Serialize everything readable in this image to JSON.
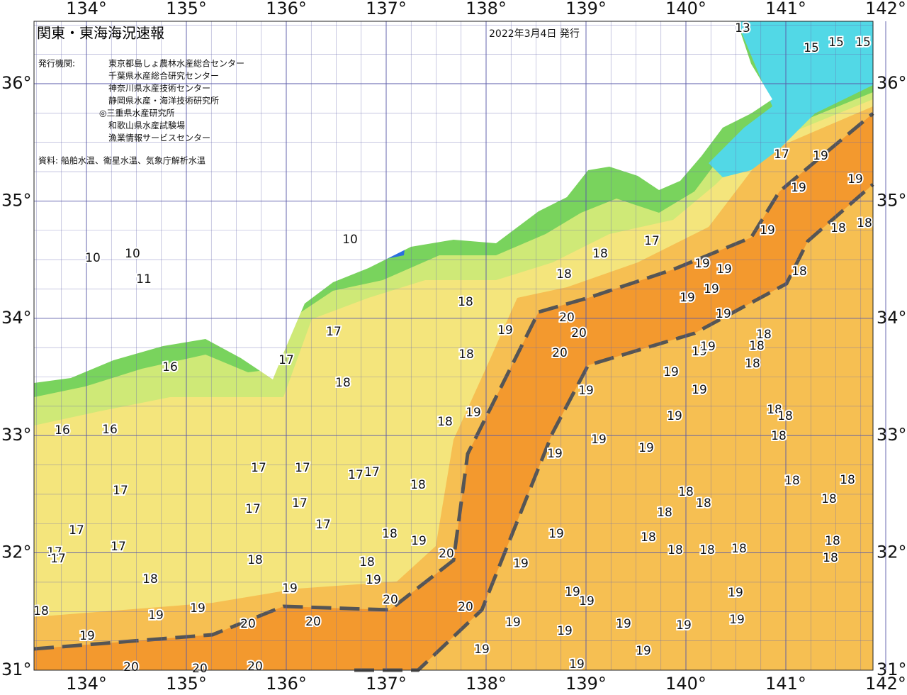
{
  "map_data": {
    "title": "関東・東海海況速報",
    "date": "2022年3月4日 発行",
    "publisher_label": "発行機関:",
    "publishers": [
      "東京都島しょ農林水産総合センター",
      "千葉県水産総合研究センター",
      "神奈川県水産技術センター",
      "静岡県水産・海洋技術研究所",
      "◎三重県水産研究所",
      "和歌山県水産試験場",
      "漁業情報サービスセンター"
    ],
    "source": "資料: 船舶水温、衛星水温、気象庁解析水温",
    "lon_ticks": [
      {
        "value": 134,
        "label": "134°"
      },
      {
        "value": 135,
        "label": "135°"
      },
      {
        "value": 136,
        "label": "136°"
      },
      {
        "value": 137,
        "label": "137°"
      },
      {
        "value": 138,
        "label": "138°"
      },
      {
        "value": 139,
        "label": "139°"
      },
      {
        "value": 140,
        "label": "140°"
      },
      {
        "value": 141,
        "label": "141°"
      },
      {
        "value": 142,
        "label": "142°"
      }
    ],
    "lat_ticks": [
      {
        "value": 31,
        "label": "31°"
      },
      {
        "value": 32,
        "label": "32°"
      },
      {
        "value": 33,
        "label": "33°"
      },
      {
        "value": 34,
        "label": "34°"
      },
      {
        "value": 35,
        "label": "35°"
      },
      {
        "value": 36,
        "label": "36°"
      }
    ],
    "contour_labels": [
      13,
      15,
      15,
      15,
      17,
      19,
      19,
      19,
      19,
      18,
      18,
      17,
      18,
      18,
      19,
      19,
      19,
      19,
      19,
      18,
      20,
      20,
      20,
      19,
      18,
      18,
      18,
      18,
      18,
      19,
      19,
      19,
      19,
      19,
      19,
      18,
      18,
      18,
      19,
      19,
      19,
      19,
      18,
      18,
      17,
      17,
      10,
      10,
      10,
      11,
      16,
      16,
      16,
      17,
      17,
      17,
      17,
      17,
      17,
      17,
      17,
      18,
      18,
      19,
      20,
      18,
      19,
      19,
      20,
      20,
      19,
      19,
      18,
      18,
      18,
      18,
      18,
      18,
      18,
      18,
      18,
      18,
      18,
      18,
      19,
      19,
      19,
      19,
      19,
      19,
      19,
      19,
      19,
      19,
      19,
      18,
      18,
      17,
      17,
      17,
      17,
      19,
      19,
      19,
      18,
      20,
      20,
      20,
      20,
      20
    ]
  }
}
